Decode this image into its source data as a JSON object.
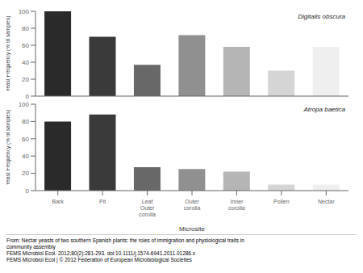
{
  "chart_data": [
    {
      "type": "bar",
      "title": "Digitalis obscura",
      "ylabel": "Yeast Frequency (% of samples)",
      "categories": [
        "Bark",
        "Pit",
        "Leaf\nOuter\ncorolla",
        "Outer\ncorolla",
        "Inner\ncorolla",
        "Pollen",
        "Nectar"
      ],
      "values": [
        100,
        70,
        37,
        72,
        58,
        30,
        58
      ],
      "colors": [
        "#2a2a2a",
        "#3a3a3a",
        "#686868",
        "#909090",
        "#b5b5b5",
        "#d5d5d5",
        "#efefef"
      ],
      "ylim": [
        0,
        100
      ],
      "yticks": [
        0,
        20,
        40,
        60,
        80,
        100
      ],
      "grid": false,
      "tick_labels": "y"
    },
    {
      "type": "bar",
      "title": "Atropa baetica",
      "xlabel": "Microsite",
      "ylabel": "Yeast Frequency (% of samples)",
      "categories": [
        "Bark",
        "Pit",
        "Leaf\nOuter\ncorolla",
        "Outer\ncorolla",
        "Inner\ncorolla",
        "Pollen",
        "Nectar"
      ],
      "values": [
        80,
        88,
        27,
        25,
        22,
        7,
        7
      ],
      "colors": [
        "#2a2a2a",
        "#3a3a3a",
        "#686868",
        "#909090",
        "#b5b5b5",
        "#d5d5d5",
        "#efefef"
      ],
      "ylim": [
        0,
        100
      ],
      "yticks": [
        0,
        20,
        40,
        60,
        80,
        100
      ],
      "grid": false,
      "annotations": [
        "From: Nectar yeasts of two southern Spanish plants: the roles of immigration and physiological traits in",
        "community assembly",
        "FEMS Microbiol Ecol. 2012;80(2):281-293. doi:10.1111/j.1574-6941.2011.01286.x",
        "FEMS Microbiol Ecol | © 2012 Federation of European Microbiological Societies"
      ]
    }
  ]
}
